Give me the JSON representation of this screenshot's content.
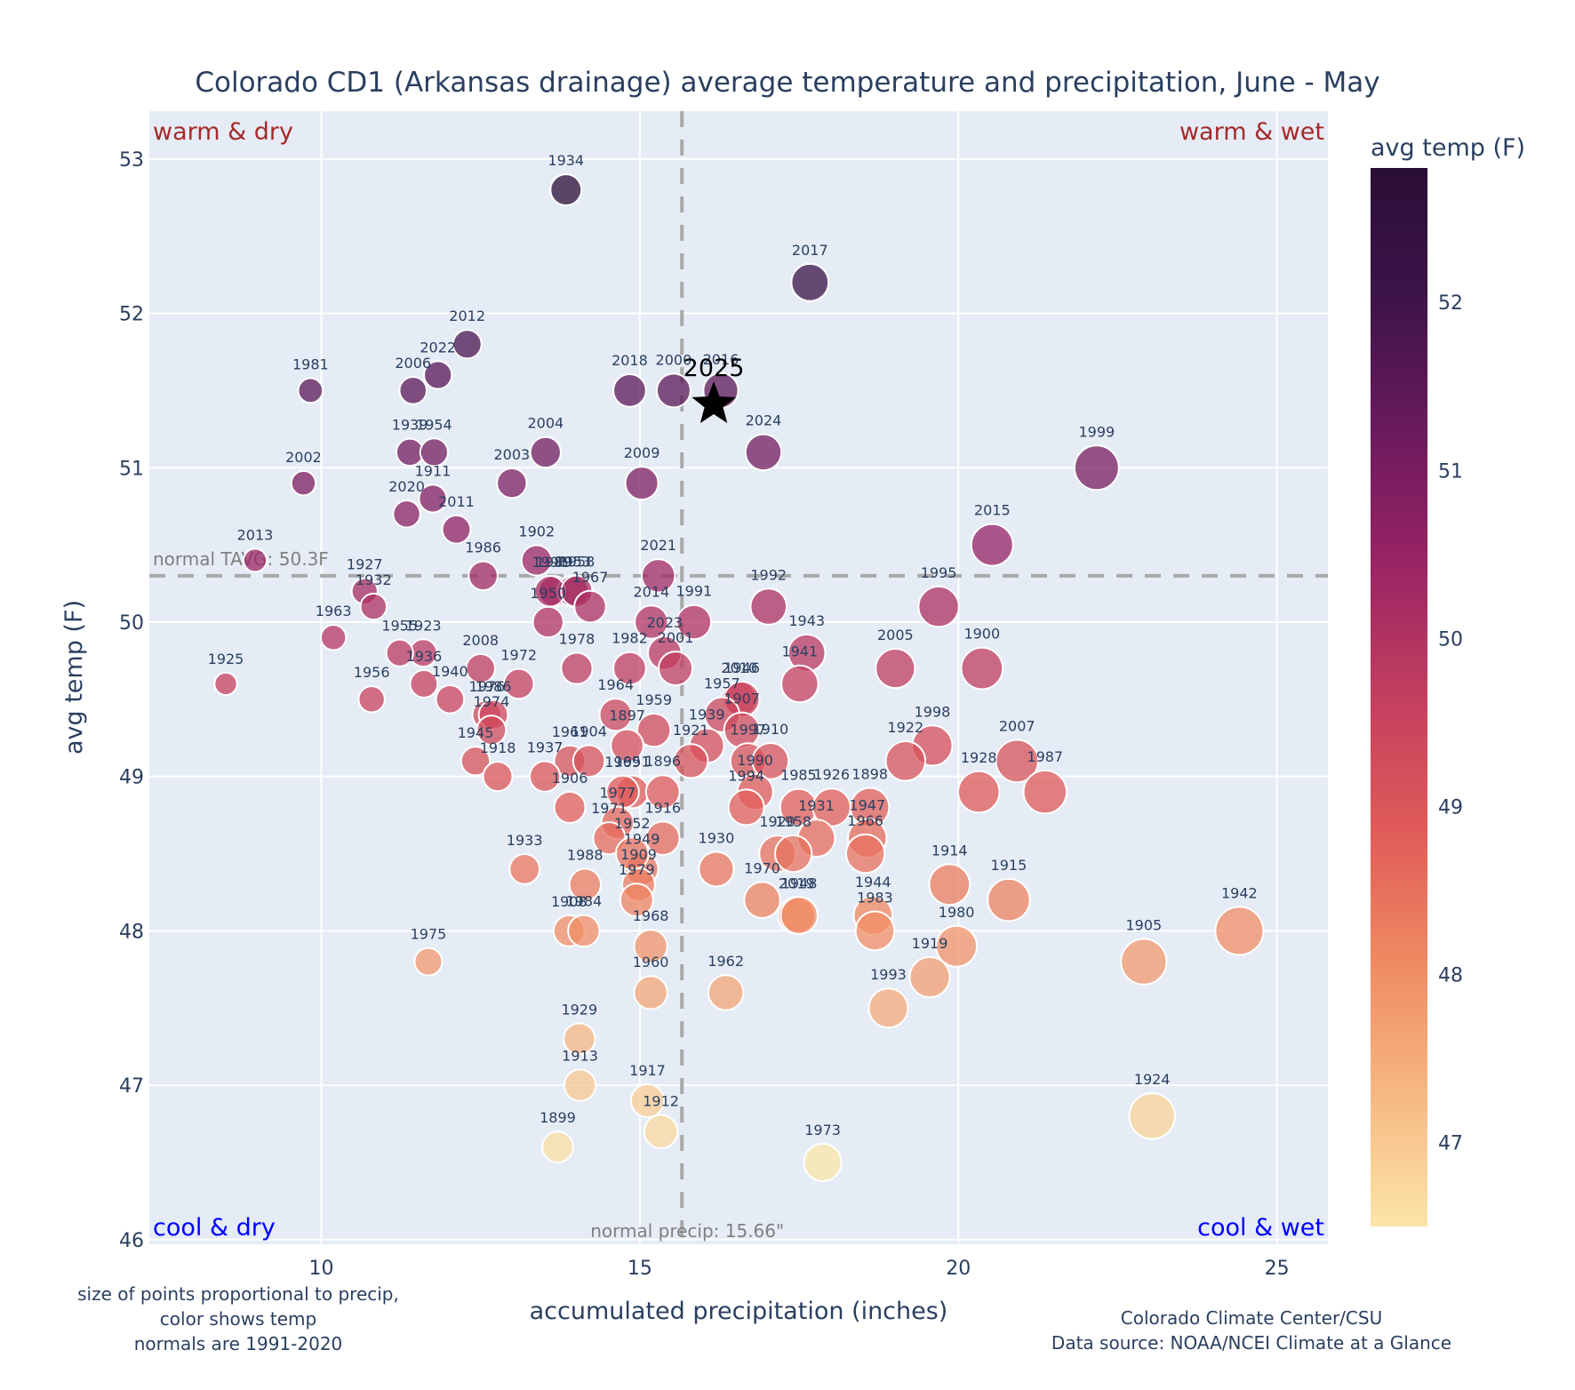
{
  "chart_data": {
    "type": "scatter",
    "title": "Colorado CD1 (Arkansas drainage) average temperature and precipitation, June - May",
    "xlabel": "accumulated precipitation (inches)",
    "ylabel": "avg temp (F)",
    "xlim": [
      7.3,
      25.8
    ],
    "ylim": [
      45.97,
      53.31
    ],
    "xticks": [
      10,
      15,
      20,
      25
    ],
    "yticks": [
      46,
      47,
      48,
      49,
      50,
      51,
      52,
      53
    ],
    "grid": true,
    "colorbar": {
      "title": "avg temp (F)",
      "range": [
        46.5,
        52.8
      ],
      "ticks": [
        47,
        48,
        49,
        50,
        51,
        52
      ],
      "colorscale": [
        "#fbe5a9",
        "#f6b882",
        "#ef8a62",
        "#e05b58",
        "#c33f5f",
        "#9a2464",
        "#6b1a5e",
        "#3e144a",
        "#2a0e36"
      ]
    },
    "reference_lines": {
      "normal_temp": {
        "value": 50.3,
        "label": "normal TAVG: 50.3F"
      },
      "normal_precip": {
        "value": 15.66,
        "label": "normal precip: 15.66\""
      }
    },
    "quadrant_labels": {
      "top_left": {
        "text": "warm & dry",
        "color": "#a52a2a"
      },
      "top_right": {
        "text": "warm & wet",
        "color": "#a52a2a"
      },
      "bottom_left": {
        "text": "cool & dry",
        "color": "#0000ff"
      },
      "bottom_right": {
        "text": "cool & wet",
        "color": "#0000ff"
      }
    },
    "highlight": {
      "label": "2025",
      "x": 16.16,
      "y": 51.41,
      "marker": "star"
    },
    "notes": {
      "left": [
        "size of points proportional to precip,",
        "color shows temp",
        "normals are 1991-2020"
      ],
      "right": [
        "Colorado Climate Center/CSU",
        "Data source: NOAA/NCEI Climate at a Glance"
      ]
    },
    "points": [
      {
        "year": "1934",
        "x": 13.84,
        "y": 52.8
      },
      {
        "year": "2017",
        "x": 17.67,
        "y": 52.2
      },
      {
        "year": "2012",
        "x": 12.29,
        "y": 51.8
      },
      {
        "year": "2022",
        "x": 11.83,
        "y": 51.6
      },
      {
        "year": "1981",
        "x": 9.83,
        "y": 51.5
      },
      {
        "year": "2006",
        "x": 11.44,
        "y": 51.5
      },
      {
        "year": "2018",
        "x": 14.84,
        "y": 51.5
      },
      {
        "year": "2000",
        "x": 15.53,
        "y": 51.5
      },
      {
        "year": "2016",
        "x": 16.27,
        "y": 51.5
      },
      {
        "year": "1939",
        "x": 11.39,
        "y": 51.1
      },
      {
        "year": "1954",
        "x": 11.77,
        "y": 51.1
      },
      {
        "year": "2004",
        "x": 13.52,
        "y": 51.1
      },
      {
        "year": "2024",
        "x": 16.94,
        "y": 51.1
      },
      {
        "year": "1999",
        "x": 22.17,
        "y": 51.0
      },
      {
        "year": "2002",
        "x": 9.72,
        "y": 50.9
      },
      {
        "year": "2003",
        "x": 12.99,
        "y": 50.9
      },
      {
        "year": "2009",
        "x": 15.03,
        "y": 50.9
      },
      {
        "year": "1911",
        "x": 11.75,
        "y": 50.8
      },
      {
        "year": "2020",
        "x": 11.34,
        "y": 50.7
      },
      {
        "year": "2011",
        "x": 12.12,
        "y": 50.6
      },
      {
        "year": "2015",
        "x": 20.53,
        "y": 50.5
      },
      {
        "year": "2013",
        "x": 8.96,
        "y": 50.4
      },
      {
        "year": "1902",
        "x": 13.38,
        "y": 50.4
      },
      {
        "year": "1989",
        "x": 13.65,
        "y": 50.2
      },
      {
        "year": "1953",
        "x": 13.95,
        "y": 50.2
      },
      {
        "year": "2021",
        "x": 15.29,
        "y": 50.3
      },
      {
        "year": "1986",
        "x": 12.54,
        "y": 50.3
      },
      {
        "year": "1927",
        "x": 10.68,
        "y": 50.2
      },
      {
        "year": "1996",
        "x": 13.59,
        "y": 50.2
      },
      {
        "year": "1958",
        "x": 14.01,
        "y": 50.2
      },
      {
        "year": "1967",
        "x": 14.22,
        "y": 50.1
      },
      {
        "year": "1932",
        "x": 10.82,
        "y": 50.1
      },
      {
        "year": "1995",
        "x": 19.69,
        "y": 50.1
      },
      {
        "year": "1992",
        "x": 17.02,
        "y": 50.1
      },
      {
        "year": "2014",
        "x": 15.18,
        "y": 50.0
      },
      {
        "year": "1991",
        "x": 15.85,
        "y": 50.0
      },
      {
        "year": "1950",
        "x": 13.56,
        "y": 50.0
      },
      {
        "year": "1963",
        "x": 10.19,
        "y": 49.9
      },
      {
        "year": "1923",
        "x": 11.6,
        "y": 49.8
      },
      {
        "year": "1955",
        "x": 11.23,
        "y": 49.8
      },
      {
        "year": "1972",
        "x": 13.1,
        "y": 49.6
      },
      {
        "year": "2023",
        "x": 15.39,
        "y": 49.8
      },
      {
        "year": "1943",
        "x": 17.62,
        "y": 49.8
      },
      {
        "year": "2001",
        "x": 15.56,
        "y": 49.7
      },
      {
        "year": "1982",
        "x": 14.84,
        "y": 49.7
      },
      {
        "year": "1978",
        "x": 14.01,
        "y": 49.7
      },
      {
        "year": "2005",
        "x": 19.01,
        "y": 49.7
      },
      {
        "year": "1900",
        "x": 20.37,
        "y": 49.7
      },
      {
        "year": "2008",
        "x": 12.5,
        "y": 49.7
      },
      {
        "year": "1925",
        "x": 8.5,
        "y": 49.6
      },
      {
        "year": "1936",
        "x": 11.61,
        "y": 49.6
      },
      {
        "year": "1941",
        "x": 17.51,
        "y": 49.6
      },
      {
        "year": "1956",
        "x": 10.79,
        "y": 49.5
      },
      {
        "year": "1940",
        "x": 12.02,
        "y": 49.5
      },
      {
        "year": "2010",
        "x": 16.56,
        "y": 49.5
      },
      {
        "year": "1946",
        "x": 16.6,
        "y": 49.5
      },
      {
        "year": "1964",
        "x": 14.62,
        "y": 49.4
      },
      {
        "year": "1976",
        "x": 12.6,
        "y": 49.4
      },
      {
        "year": "1986b",
        "x": 12.7,
        "y": 49.4
      },
      {
        "year": "1974",
        "x": 12.67,
        "y": 49.3
      },
      {
        "year": "1957",
        "x": 16.29,
        "y": 49.4
      },
      {
        "year": "1959",
        "x": 15.22,
        "y": 49.3
      },
      {
        "year": "1945",
        "x": 12.42,
        "y": 49.1
      },
      {
        "year": "1897",
        "x": 14.8,
        "y": 49.2
      },
      {
        "year": "1939b",
        "x": 16.05,
        "y": 49.2
      },
      {
        "year": "1907",
        "x": 16.6,
        "y": 49.3
      },
      {
        "year": "1998",
        "x": 19.59,
        "y": 49.2
      },
      {
        "year": "1921",
        "x": 15.8,
        "y": 49.1
      },
      {
        "year": "1961",
        "x": 13.9,
        "y": 49.1
      },
      {
        "year": "1904",
        "x": 14.2,
        "y": 49.1
      },
      {
        "year": "1997",
        "x": 16.7,
        "y": 49.1
      },
      {
        "year": "1910",
        "x": 17.05,
        "y": 49.1
      },
      {
        "year": "1922",
        "x": 19.17,
        "y": 49.1
      },
      {
        "year": "2007",
        "x": 20.92,
        "y": 49.1
      },
      {
        "year": "1918",
        "x": 12.77,
        "y": 49.0
      },
      {
        "year": "1937",
        "x": 13.51,
        "y": 49.0
      },
      {
        "year": "1951",
        "x": 14.88,
        "y": 48.9
      },
      {
        "year": "1896",
        "x": 15.36,
        "y": 48.9
      },
      {
        "year": "1990",
        "x": 16.81,
        "y": 48.9
      },
      {
        "year": "1928",
        "x": 20.32,
        "y": 48.9
      },
      {
        "year": "1987",
        "x": 21.36,
        "y": 48.9
      },
      {
        "year": "1906",
        "x": 13.9,
        "y": 48.8
      },
      {
        "year": "1969",
        "x": 14.73,
        "y": 48.9
      },
      {
        "year": "1994",
        "x": 16.67,
        "y": 48.8
      },
      {
        "year": "1985",
        "x": 17.49,
        "y": 48.8
      },
      {
        "year": "1926",
        "x": 18.01,
        "y": 48.8
      },
      {
        "year": "1898",
        "x": 18.61,
        "y": 48.8
      },
      {
        "year": "1977",
        "x": 14.65,
        "y": 48.7
      },
      {
        "year": "1916",
        "x": 15.36,
        "y": 48.6
      },
      {
        "year": "1931",
        "x": 17.77,
        "y": 48.6
      },
      {
        "year": "1947",
        "x": 18.57,
        "y": 48.6
      },
      {
        "year": "1966",
        "x": 18.54,
        "y": 48.5
      },
      {
        "year": "1920",
        "x": 17.16,
        "y": 48.5
      },
      {
        "year": "1958b",
        "x": 17.41,
        "y": 48.5
      },
      {
        "year": "1971",
        "x": 14.52,
        "y": 48.6
      },
      {
        "year": "1988",
        "x": 14.14,
        "y": 48.3
      },
      {
        "year": "1933",
        "x": 13.19,
        "y": 48.4
      },
      {
        "year": "1949",
        "x": 15.03,
        "y": 48.4
      },
      {
        "year": "1930",
        "x": 16.2,
        "y": 48.4
      },
      {
        "year": "1914",
        "x": 19.86,
        "y": 48.3
      },
      {
        "year": "1952",
        "x": 14.88,
        "y": 48.5
      },
      {
        "year": "1909",
        "x": 14.98,
        "y": 48.3
      },
      {
        "year": "1970",
        "x": 16.92,
        "y": 48.2
      },
      {
        "year": "1915",
        "x": 20.79,
        "y": 48.2
      },
      {
        "year": "1944",
        "x": 18.66,
        "y": 48.1
      },
      {
        "year": "2019",
        "x": 17.46,
        "y": 48.1
      },
      {
        "year": "1948",
        "x": 17.5,
        "y": 48.1
      },
      {
        "year": "1983",
        "x": 18.69,
        "y": 48.0
      },
      {
        "year": "1908",
        "x": 13.89,
        "y": 48.0
      },
      {
        "year": "1984",
        "x": 14.12,
        "y": 48.0
      },
      {
        "year": "1968",
        "x": 15.17,
        "y": 47.9
      },
      {
        "year": "1942",
        "x": 24.41,
        "y": 48.0
      },
      {
        "year": "1905",
        "x": 22.91,
        "y": 47.8
      },
      {
        "year": "1979",
        "x": 14.95,
        "y": 48.2
      },
      {
        "year": "1980",
        "x": 19.97,
        "y": 47.9
      },
      {
        "year": "1975",
        "x": 11.68,
        "y": 47.8
      },
      {
        "year": "1960",
        "x": 15.17,
        "y": 47.6
      },
      {
        "year": "1919",
        "x": 19.55,
        "y": 47.7
      },
      {
        "year": "1962",
        "x": 16.35,
        "y": 47.6
      },
      {
        "year": "1993",
        "x": 18.9,
        "y": 47.5
      },
      {
        "year": "1929",
        "x": 14.05,
        "y": 47.3
      },
      {
        "year": "1913",
        "x": 14.06,
        "y": 47.0
      },
      {
        "year": "1917",
        "x": 15.12,
        "y": 46.9
      },
      {
        "year": "1912",
        "x": 15.33,
        "y": 46.7
      },
      {
        "year": "1924",
        "x": 23.04,
        "y": 46.8
      },
      {
        "year": "1899",
        "x": 13.71,
        "y": 46.6
      },
      {
        "year": "1973",
        "x": 17.87,
        "y": 46.5
      }
    ]
  }
}
